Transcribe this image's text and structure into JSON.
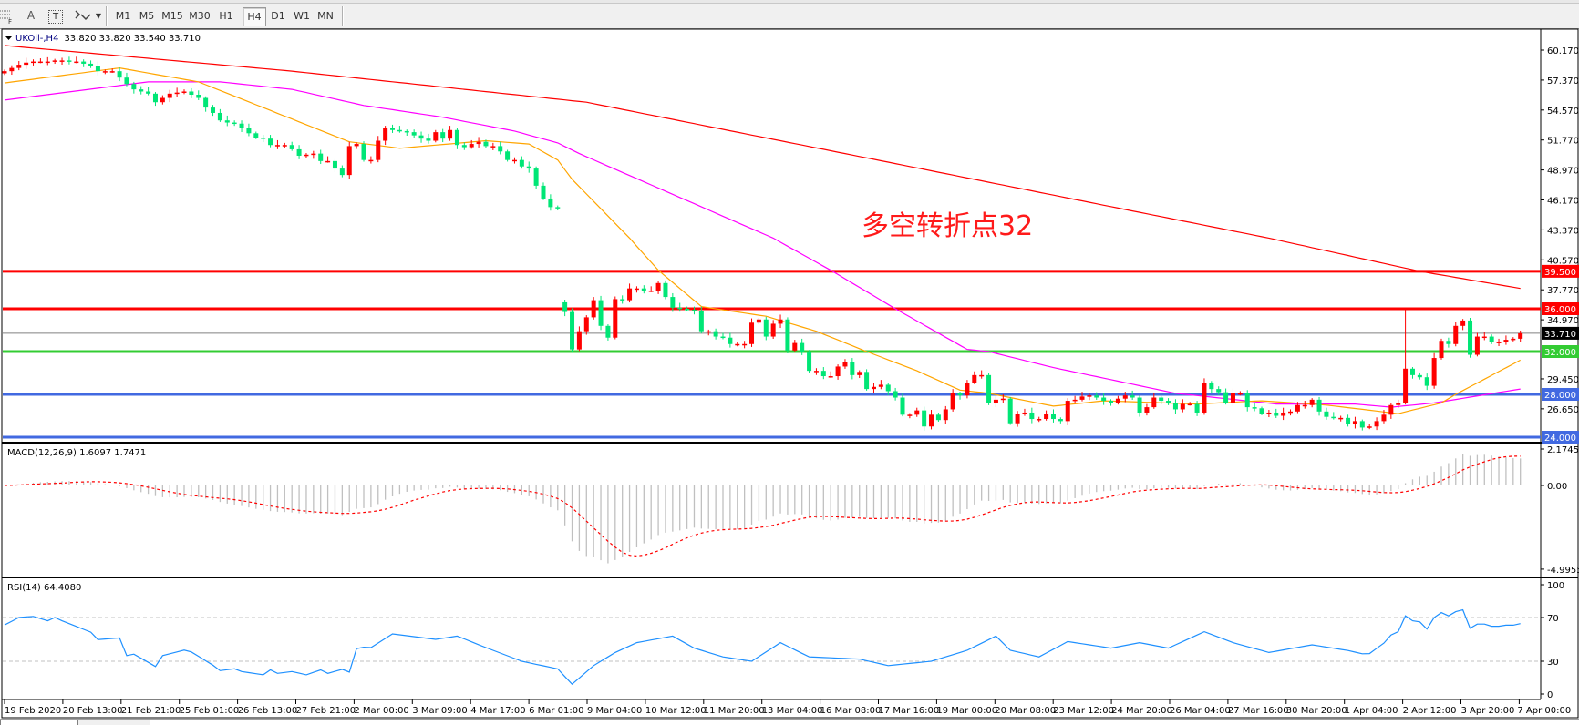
{
  "toolbar": {
    "tools": [
      {
        "icon": "grid-fibo-icon"
      },
      {
        "icon": "text-a-icon",
        "label": "A"
      },
      {
        "icon": "text-label-icon",
        "label": "T"
      },
      {
        "icon": "arrows-icon"
      }
    ],
    "timeframes": [
      "M1",
      "M5",
      "M15",
      "M30",
      "H1",
      "H4",
      "D1",
      "W1",
      "MN"
    ],
    "active_timeframe": "H4"
  },
  "chart": {
    "symbol_header": "UKOil-,H4",
    "ohlc_header": "33.820 33.820 33.540 33.710",
    "annotation": "多空转折点32",
    "macd_header": "MACD(12,26,9) 1.6097 1.7471",
    "rsi_header": "RSI(14) 64.4080"
  },
  "chart_data": [
    {
      "type": "candlestick",
      "symbol": "UKOil-",
      "timeframe": "H4",
      "ylim": [
        24.0,
        61.0
      ],
      "grid": false,
      "price_ticks": [
        "60.170",
        "57.370",
        "54.570",
        "51.770",
        "48.970",
        "46.170",
        "43.370",
        "40.570",
        "37.770",
        "34.970",
        "29.450",
        "26.650"
      ],
      "time_labels": [
        "19 Feb 2020",
        "20 Feb 13:00",
        "21 Feb 21:00",
        "25 Feb 01:00",
        "26 Feb 13:00",
        "27 Feb 21:00",
        "2 Mar 00:00",
        "3 Mar 09:00",
        "4 Mar 17:00",
        "6 Mar 01:00",
        "9 Mar 04:00",
        "10 Mar 12:00",
        "11 Mar 20:00",
        "13 Mar 04:00",
        "16 Mar 08:00",
        "17 Mar 16:00",
        "19 Mar 00:00",
        "20 Mar 08:00",
        "23 Mar 12:00",
        "24 Mar 20:00",
        "26 Mar 04:00",
        "27 Mar 16:00",
        "30 Mar 20:00",
        "1 Apr 04:00",
        "2 Apr 12:00",
        "3 Apr 20:00",
        "7 Apr 00:00"
      ],
      "close": [
        58.2,
        58.5,
        58.8,
        59.0,
        59.1,
        59.1,
        59.1,
        59.2,
        59.2,
        59.1,
        59.1,
        58.9,
        58.7,
        58.2,
        58.2,
        58.2,
        57.6,
        57.0,
        56.5,
        56.3,
        56.1,
        55.3,
        55.7,
        56.1,
        56.2,
        56.3,
        56.0,
        55.7,
        54.8,
        54.3,
        53.6,
        53.4,
        53.3,
        52.9,
        52.4,
        52.0,
        51.9,
        51.3,
        51.3,
        51.3,
        50.9,
        50.3,
        50.4,
        50.5,
        49.8,
        49.8,
        49.1,
        48.5,
        51.2,
        51.4,
        49.9,
        49.9,
        51.7,
        52.9,
        52.7,
        52.6,
        52.5,
        52.2,
        51.9,
        51.7,
        52.5,
        51.9,
        52.7,
        51.3,
        51.1,
        51.4,
        51.6,
        51.2,
        51.2,
        50.7,
        49.9,
        49.9,
        49.3,
        49.1,
        47.5,
        46.3,
        45.5,
        45.4,
        35.7,
        32.2,
        33.9,
        35.2,
        36.8,
        34.4,
        33.3,
        36.9,
        36.8,
        37.9,
        37.9,
        37.7,
        37.7,
        38.4,
        37.1,
        36.1,
        36.0,
        35.9,
        35.8,
        33.9,
        33.9,
        33.4,
        33.3,
        32.7,
        32.7,
        32.7,
        34.7,
        35.0,
        33.4,
        34.6,
        35.0,
        32.1,
        32.8,
        32.0,
        30.2,
        30.2,
        29.7,
        29.7,
        30.6,
        31.0,
        29.8,
        30.1,
        28.5,
        28.7,
        28.9,
        28.3,
        27.7,
        26.1,
        26.1,
        26.5,
        25.0,
        26.1,
        25.6,
        26.6,
        28.1,
        27.9,
        29.1,
        29.8,
        29.8,
        27.2,
        27.5,
        27.6,
        25.3,
        26.2,
        26.3,
        25.7,
        25.7,
        26.2,
        25.7,
        25.5,
        27.4,
        27.5,
        27.8,
        27.9,
        27.7,
        27.4,
        27.2,
        27.6,
        27.9,
        27.7,
        26.3,
        26.8,
        27.7,
        27.4,
        27.2,
        26.6,
        27.1,
        27.1,
        26.3,
        29.1,
        28.5,
        28.2,
        27.2,
        28.1,
        28.1,
        26.8,
        26.7,
        26.2,
        26.3,
        26.0,
        26.3,
        26.4,
        27.0,
        27.0,
        27.5,
        26.4,
        25.9,
        25.8,
        25.8,
        25.2,
        25.5,
        24.9,
        25.0,
        25.5,
        26.1,
        27.0,
        27.2,
        30.4,
        29.8,
        29.6,
        28.8,
        31.4,
        33.0,
        32.7,
        34.4,
        34.9,
        31.7,
        33.4,
        33.4,
        32.9,
        32.9,
        33.1,
        33.2,
        33.71
      ],
      "gaps": [
        {
          "bar": 78,
          "open": 36.6
        }
      ],
      "spikes": [
        {
          "bar": 195,
          "high": 36.0
        }
      ],
      "moving_averages": [
        {
          "color": "#ff0000",
          "points": [
            [
              0,
              60.6
            ],
            [
              40,
              58.2
            ],
            [
              81,
              55.3
            ],
            [
              120,
              50.1
            ],
            [
              176,
              42.6
            ],
            [
              197,
              39.5
            ],
            [
              211,
              37.9
            ]
          ]
        },
        {
          "color": "#ff00ff",
          "points": [
            [
              0,
              55.5
            ],
            [
              20,
              57.2
            ],
            [
              30,
              57.2
            ],
            [
              40,
              56.5
            ],
            [
              50,
              55.0
            ],
            [
              61,
              53.9
            ],
            [
              71,
              52.6
            ],
            [
              77,
              51.5
            ],
            [
              80,
              50.5
            ],
            [
              107,
              42.6
            ],
            [
              115,
              39.6
            ],
            [
              124,
              36.0
            ],
            [
              134,
              32.2
            ],
            [
              137,
              32.0
            ],
            [
              146,
              30.5
            ],
            [
              151,
              29.8
            ],
            [
              163,
              28.1
            ],
            [
              177,
              27.1
            ],
            [
              188,
              27.1
            ],
            [
              193,
              26.8
            ],
            [
              199,
              27.2
            ],
            [
              211,
              28.5
            ]
          ]
        },
        {
          "color": "#ffa500",
          "points": [
            [
              0,
              57.1
            ],
            [
              16,
              58.5
            ],
            [
              27,
              57.2
            ],
            [
              48,
              51.6
            ],
            [
              55,
              51.0
            ],
            [
              67,
              51.7
            ],
            [
              73,
              51.4
            ],
            [
              77,
              49.9
            ],
            [
              79,
              48.1
            ],
            [
              87,
              42.6
            ],
            [
              91,
              39.6
            ],
            [
              97,
              36.2
            ],
            [
              106,
              35.3
            ],
            [
              113,
              33.9
            ],
            [
              120,
              32.0
            ],
            [
              127,
              30.2
            ],
            [
              133,
              28.4
            ],
            [
              137,
              28.1
            ],
            [
              146,
              26.9
            ],
            [
              153,
              27.4
            ],
            [
              166,
              27.1
            ],
            [
              175,
              27.4
            ],
            [
              184,
              27.0
            ],
            [
              194,
              26.2
            ],
            [
              200,
              27.2
            ],
            [
              202,
              28.0
            ],
            [
              211,
              31.2
            ]
          ]
        }
      ],
      "horizontal_levels": [
        {
          "price": "39.500",
          "color": "#ff0000"
        },
        {
          "price": "36.000",
          "color": "#ff0000"
        },
        {
          "price": "32.000",
          "color": "#33cc33"
        },
        {
          "price": "28.000",
          "color": "#4169e1"
        },
        {
          "price": "24.000",
          "color": "#4169e1"
        }
      ],
      "bid_line": {
        "price": "33.710",
        "color": "#808080"
      },
      "colors": {
        "bull": "#ff0000",
        "bear": "#00e676"
      }
    },
    {
      "type": "bar",
      "indicator": "MACD(12,26,9)",
      "ylim": [
        -4.9955,
        2.1745
      ],
      "ticks": [
        "2.1745",
        "0.00",
        "-4.9955"
      ],
      "main_color": "#c0c0c0",
      "signal_color": "#ff0000",
      "values_printed": [
        1.6097,
        1.7471
      ]
    },
    {
      "type": "line",
      "indicator": "RSI(14)",
      "ylim": [
        0,
        100
      ],
      "ticks": [
        "100",
        "70",
        "30",
        "0"
      ],
      "levels": [
        70,
        30
      ],
      "color": "#1e90ff",
      "points": [
        [
          0,
          63.2
        ],
        [
          2,
          70
        ],
        [
          4,
          71
        ],
        [
          6,
          67
        ],
        [
          7,
          70
        ],
        [
          8,
          67
        ],
        [
          12,
          56.6
        ],
        [
          13,
          49.8
        ],
        [
          16,
          51.3
        ],
        [
          17,
          35.2
        ],
        [
          18,
          36.5
        ],
        [
          21,
          25.2
        ],
        [
          22,
          35.2
        ],
        [
          25,
          40.2
        ],
        [
          26,
          38.5
        ],
        [
          29,
          26.4
        ],
        [
          30,
          21.4
        ],
        [
          32,
          23.1
        ],
        [
          33,
          20.6
        ],
        [
          36,
          17.6
        ],
        [
          37,
          22.1
        ],
        [
          38,
          18.9
        ],
        [
          40,
          20.6
        ],
        [
          42,
          17.6
        ],
        [
          44,
          22.1
        ],
        [
          45,
          18.9
        ],
        [
          47,
          22.6
        ],
        [
          48,
          20.1
        ],
        [
          49,
          41.5
        ],
        [
          50,
          42.8
        ],
        [
          51,
          42.5
        ],
        [
          54,
          55
        ],
        [
          60,
          50
        ],
        [
          63,
          53
        ],
        [
          67,
          42.5
        ],
        [
          72,
          30
        ],
        [
          77,
          23
        ],
        [
          79,
          9
        ],
        [
          82,
          26
        ],
        [
          85,
          38
        ],
        [
          88,
          47
        ],
        [
          93,
          53
        ],
        [
          96,
          42
        ],
        [
          100,
          34
        ],
        [
          104,
          30
        ],
        [
          108,
          47
        ],
        [
          112,
          34
        ],
        [
          119,
          32
        ],
        [
          123,
          26
        ],
        [
          129,
          30
        ],
        [
          134,
          40
        ],
        [
          138,
          53
        ],
        [
          140,
          40
        ],
        [
          144,
          34
        ],
        [
          148,
          48
        ],
        [
          154,
          42
        ],
        [
          158,
          47
        ],
        [
          162,
          42
        ],
        [
          167,
          57
        ],
        [
          171,
          47
        ],
        [
          176,
          38
        ],
        [
          182,
          45
        ],
        [
          187,
          39.8
        ],
        [
          189,
          36.8
        ],
        [
          190,
          37
        ],
        [
          192,
          46.6
        ],
        [
          193,
          54
        ],
        [
          194,
          57
        ],
        [
          195,
          71.5
        ],
        [
          196,
          67
        ],
        [
          197,
          66
        ],
        [
          198,
          59.4
        ],
        [
          199,
          70
        ],
        [
          200,
          74.5
        ],
        [
          201,
          71.5
        ],
        [
          202,
          75.3
        ],
        [
          203,
          77
        ],
        [
          204,
          60.2
        ],
        [
          205,
          64
        ],
        [
          206,
          64
        ],
        [
          207,
          62
        ],
        [
          208,
          62
        ],
        [
          209,
          63
        ],
        [
          210,
          63
        ],
        [
          211,
          64.4
        ]
      ]
    }
  ]
}
